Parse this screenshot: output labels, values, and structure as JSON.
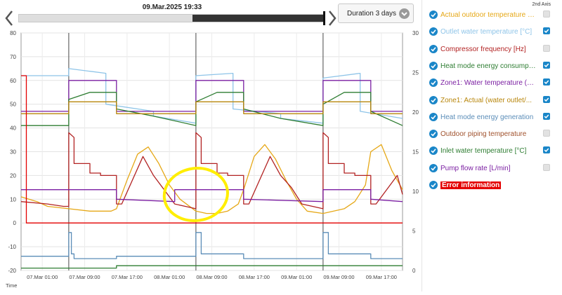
{
  "header": {
    "timestamp": "09.Mar.2025 19:33",
    "duration_label": "Duration 3 days",
    "timeline_progress": 0.43
  },
  "panel": {
    "axis2_header": "2nd Axis",
    "items": [
      {
        "label": "Actual outdoor temperature [°C]",
        "color": "#e6a817",
        "axis2": false
      },
      {
        "label": "Outlet water temperature [°C]",
        "color": "#8ec4e8",
        "axis2": true
      },
      {
        "label": "Compressor frequency [Hz]",
        "color": "#b22222",
        "axis2": false
      },
      {
        "label": "Heat mode energy consumption",
        "color": "#2e7d32",
        "axis2": true
      },
      {
        "label": "Zone1: Water temperature (°C)",
        "color": "#7b1fa2",
        "axis2": true
      },
      {
        "label": "Zone1: Actual (water outlet/...",
        "color": "#b8860b",
        "axis2": true
      },
      {
        "label": "Heat mode energy generation",
        "color": "#5b8db8",
        "axis2": true
      },
      {
        "label": "Outdoor piping temperature",
        "color": "#a0522d",
        "axis2": false
      },
      {
        "label": "Inlet water temperature [°C]",
        "color": "#2e7d32",
        "axis2": true
      },
      {
        "label": "Pump flow rate [L/min]",
        "color": "#7b1fa2",
        "axis2": false
      },
      {
        "label": "Error information",
        "color": "#e40000",
        "axis2": null
      }
    ]
  },
  "chart_data": {
    "type": "line",
    "xlabel": "Time",
    "x_ticks": [
      "07.Mar 01:00",
      "07.Mar 09:00",
      "07.Mar 17:00",
      "08.Mar 01:00",
      "08.Mar 09:00",
      "08.Mar 17:00",
      "09.Mar 01:00",
      "09.Mar 09:00",
      "09.Mar 17:00"
    ],
    "x_range_hours": [
      -5,
      67
    ],
    "ylim_left": [
      -20,
      80
    ],
    "y_ticks_left": [
      -20,
      -10,
      0,
      10,
      20,
      30,
      40,
      50,
      60,
      70,
      80
    ],
    "ylim_right": [
      0,
      30
    ],
    "y_ticks_right": [
      0,
      5,
      10,
      15,
      20,
      25,
      30
    ],
    "grid": true,
    "day_boundaries_hours": [
      4,
      28,
      52
    ],
    "series": [
      {
        "name": "Outlet water temperature [°C]",
        "color": "#8ec4e8",
        "x": [
          -5,
          4,
          4,
          11,
          11,
          20,
          20,
          28,
          28,
          35,
          35,
          44,
          44,
          52,
          52,
          59,
          59,
          67
        ],
        "y": [
          62,
          62,
          65,
          63,
          50,
          47,
          45,
          42,
          62,
          63,
          48,
          46,
          44,
          42,
          61,
          63,
          47,
          44
        ]
      },
      {
        "name": "Zone1: Water temperature (°C)",
        "color": "#7b1fa2",
        "x": [
          -5,
          4,
          4,
          13,
          13,
          28,
          28,
          37,
          37,
          52,
          52,
          61,
          61,
          67
        ],
        "y": [
          47,
          47,
          60,
          60,
          47,
          47,
          60,
          60,
          47,
          47,
          60,
          60,
          47,
          47
        ]
      },
      {
        "name": "Heat mode energy consumption",
        "color": "#2e7d32",
        "x": [
          -5,
          4,
          4,
          8,
          13,
          13,
          20,
          28,
          28,
          32,
          37,
          37,
          44,
          52,
          52,
          56,
          61,
          61,
          67
        ],
        "y": [
          41,
          41,
          52,
          55,
          55,
          48,
          45,
          41,
          51,
          55,
          55,
          48,
          44,
          41,
          50,
          55,
          55,
          47,
          41
        ]
      },
      {
        "name": "Zone1: Actual (water outlet/...",
        "color": "#b8860b",
        "x": [
          -5,
          4,
          4,
          13,
          13,
          28,
          28,
          37,
          37,
          52,
          52,
          61,
          61,
          67
        ],
        "y": [
          46,
          46,
          51,
          51,
          46,
          46,
          51,
          51,
          46,
          46,
          51,
          51,
          46,
          46
        ]
      },
      {
        "name": "Actual outdoor temperature [°C]",
        "color": "#e6a817",
        "x": [
          -5,
          -2,
          0,
          4,
          8,
          12,
          13,
          15,
          17,
          19,
          21,
          23,
          25,
          28,
          30,
          32,
          34,
          36,
          37,
          39,
          41,
          43,
          45,
          47,
          49,
          52,
          54,
          56,
          58,
          60,
          61,
          63,
          65,
          67
        ],
        "y": [
          11,
          9,
          7,
          6,
          5,
          5,
          6,
          18,
          29,
          32,
          25,
          16,
          10,
          5,
          4,
          4,
          5,
          8,
          14,
          28,
          33,
          27,
          18,
          10,
          5,
          4,
          5,
          6,
          9,
          16,
          30,
          33,
          22,
          14
        ]
      },
      {
        "name": "Compressor frequency [Hz]",
        "color": "#b22222",
        "x": [
          -5,
          0,
          3,
          4,
          4,
          5,
          5,
          8,
          8,
          10,
          10,
          13,
          13,
          14,
          18,
          20,
          22,
          24,
          26,
          28,
          28,
          29,
          29,
          32,
          32,
          34,
          34,
          37,
          37,
          38,
          42,
          44,
          46,
          48,
          50,
          52,
          52,
          53,
          53,
          56,
          56,
          58,
          58,
          61,
          61,
          62,
          66,
          67
        ],
        "y": [
          9,
          8,
          7,
          7,
          38,
          36,
          25,
          25,
          21,
          21,
          20,
          20,
          8,
          8,
          28,
          20,
          14,
          8,
          7,
          6,
          38,
          36,
          25,
          25,
          21,
          21,
          20,
          20,
          8,
          8,
          28,
          20,
          15,
          8,
          7,
          6,
          38,
          36,
          25,
          25,
          21,
          21,
          20,
          20,
          8,
          8,
          20,
          12
        ]
      },
      {
        "name": "Pump flow rate [L/min]",
        "color": "#7b1fa2",
        "x": [
          -5,
          4,
          4,
          13,
          13,
          24,
          24,
          28,
          28,
          37,
          37,
          52,
          52,
          61,
          61,
          67
        ],
        "y": [
          14,
          14,
          14,
          14,
          10,
          9,
          14,
          14,
          14,
          14,
          10,
          9,
          14,
          14,
          10,
          9
        ]
      },
      {
        "name": "Heat mode energy generation",
        "color": "#5b8db8",
        "x": [
          -5,
          4,
          4,
          4.5,
          4.5,
          5,
          5,
          13,
          13,
          28,
          28,
          29,
          29,
          37,
          37,
          52,
          52,
          53,
          53,
          61,
          61,
          67
        ],
        "y": [
          -14,
          -14,
          -4,
          -4,
          -13,
          -13,
          -15,
          -15,
          -14,
          -14,
          -4,
          -4,
          -13,
          -13,
          -15,
          -15,
          -4,
          -4,
          -13,
          -13,
          -15,
          -15
        ]
      },
      {
        "name": "Inlet water temperature [°C]",
        "color": "#2e7d32",
        "x": [
          -5,
          4,
          4,
          13,
          13,
          28,
          28,
          37,
          37,
          52,
          52,
          61,
          61,
          67
        ],
        "y": [
          -19,
          -19,
          -19,
          -19,
          -18,
          -18,
          -18,
          -18,
          -18,
          -18,
          -18,
          -18,
          -18,
          -18
        ]
      },
      {
        "name": "Error information",
        "color": "#e40000",
        "x": [
          -5,
          -4,
          -4,
          67
        ],
        "y": [
          62,
          62,
          0,
          0
        ]
      }
    ],
    "annotations": [
      {
        "type": "ellipse",
        "color": "#ffee00",
        "cx_hours": 28,
        "cy": 12,
        "rx_hours": 6,
        "ry": 11
      }
    ]
  }
}
